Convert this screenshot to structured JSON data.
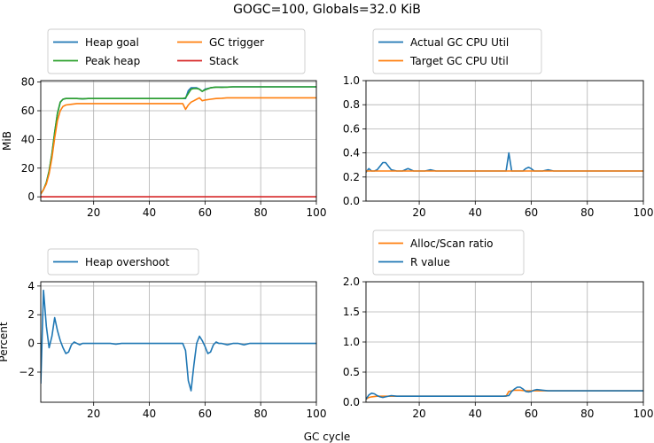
{
  "figure": {
    "title": "GOGC=100, Globals=32.0 KiB",
    "shared_xlabel": "GC cycle"
  },
  "colors": {
    "blue": "#1f77b4",
    "orange": "#ff7f0e",
    "green": "#2ca02c",
    "red": "#d62728",
    "grid": "#b0b0b0"
  },
  "chart_data": [
    {
      "id": "heap",
      "type": "line",
      "xlabel": "",
      "ylabel": "MiB",
      "xlim": [
        1,
        100
      ],
      "ylim": [
        -3,
        81
      ],
      "xticks": [
        20,
        40,
        60,
        80,
        100
      ],
      "yticks": [
        0,
        20,
        40,
        60,
        80
      ],
      "grid": true,
      "legend": {
        "placement": "top-left-outside",
        "columns": 2
      },
      "series": [
        {
          "name": "Heap goal",
          "color": "#1f77b4",
          "x": [
            1,
            2,
            3,
            4,
            5,
            6,
            7,
            8,
            9,
            10,
            12,
            14,
            16,
            18,
            20,
            30,
            40,
            50,
            52,
            53,
            54,
            55,
            56,
            57,
            58,
            59,
            60,
            62,
            64,
            66,
            68,
            70,
            80,
            90,
            100
          ],
          "y": [
            2,
            5,
            10,
            18,
            30,
            45,
            58,
            66,
            68,
            68.5,
            68.5,
            68.5,
            68.3,
            68.5,
            68.5,
            68.5,
            68.5,
            68.5,
            68.5,
            68.5,
            74,
            76,
            76,
            76,
            75,
            73.5,
            75,
            76,
            76.5,
            76.5,
            76.5,
            76.7,
            76.7,
            76.7,
            76.7
          ]
        },
        {
          "name": "Peak heap",
          "color": "#2ca02c",
          "x": [
            1,
            2,
            3,
            4,
            5,
            6,
            7,
            8,
            9,
            10,
            12,
            14,
            16,
            18,
            20,
            30,
            40,
            50,
            52,
            53,
            54,
            55,
            56,
            57,
            58,
            59,
            60,
            62,
            64,
            66,
            68,
            70,
            80,
            90,
            100
          ],
          "y": [
            2,
            5,
            10,
            18,
            30,
            45,
            58,
            66,
            68,
            68.5,
            68.5,
            68.5,
            68.3,
            68.5,
            68.5,
            68.5,
            68.5,
            68.5,
            68.5,
            69,
            72,
            75,
            75.5,
            75.5,
            75,
            73.5,
            74.5,
            76,
            76.5,
            76.3,
            76.5,
            76.7,
            76.7,
            76.7,
            76.7
          ]
        },
        {
          "name": "GC trigger",
          "color": "#ff7f0e",
          "x": [
            1,
            2,
            3,
            4,
            5,
            6,
            7,
            8,
            9,
            10,
            12,
            14,
            16,
            18,
            20,
            30,
            40,
            50,
            52,
            53,
            54,
            55,
            56,
            57,
            58,
            59,
            60,
            62,
            64,
            66,
            68,
            70,
            80,
            90,
            100
          ],
          "y": [
            2,
            5,
            9,
            16,
            27,
            41,
            53,
            60,
            63,
            64,
            64.5,
            65,
            65,
            65,
            65,
            65,
            65,
            65,
            65,
            61,
            64,
            66,
            67,
            68,
            69,
            67,
            67.5,
            68,
            68.5,
            68.7,
            69,
            69,
            69,
            69,
            69
          ]
        },
        {
          "name": "Stack",
          "color": "#d62728",
          "x": [
            1,
            100
          ],
          "y": [
            0,
            0
          ]
        }
      ]
    },
    {
      "id": "cpu",
      "type": "line",
      "xlabel": "",
      "ylabel": "",
      "xlim": [
        1,
        100
      ],
      "ylim": [
        0,
        1
      ],
      "xticks": [
        20,
        40,
        60,
        80,
        100
      ],
      "yticks": [
        0.0,
        0.2,
        0.4,
        0.6,
        0.8,
        1.0
      ],
      "grid": true,
      "legend": {
        "placement": "top-left-outside",
        "columns": 1
      },
      "series": [
        {
          "name": "Actual GC CPU Util",
          "color": "#1f77b4",
          "x": [
            1,
            2,
            3,
            4,
            5,
            6,
            7,
            8,
            9,
            10,
            12,
            14,
            15,
            16,
            17,
            18,
            20,
            22,
            24,
            26,
            28,
            30,
            32,
            34,
            40,
            50,
            51,
            52,
            53,
            54,
            55,
            56,
            57,
            58,
            59,
            60,
            61,
            62,
            64,
            66,
            68,
            70,
            72,
            74,
            76,
            80,
            90,
            100
          ],
          "y": [
            0.24,
            0.27,
            0.25,
            0.25,
            0.26,
            0.29,
            0.32,
            0.32,
            0.29,
            0.26,
            0.25,
            0.25,
            0.26,
            0.27,
            0.26,
            0.25,
            0.25,
            0.25,
            0.26,
            0.25,
            0.25,
            0.25,
            0.25,
            0.25,
            0.25,
            0.25,
            0.25,
            0.4,
            0.25,
            0.25,
            0.25,
            0.25,
            0.25,
            0.27,
            0.28,
            0.27,
            0.25,
            0.25,
            0.25,
            0.26,
            0.25,
            0.25,
            0.25,
            0.25,
            0.25,
            0.25,
            0.25,
            0.25
          ]
        },
        {
          "name": "Target GC CPU Util",
          "color": "#ff7f0e",
          "x": [
            1,
            100
          ],
          "y": [
            0.25,
            0.25
          ]
        }
      ]
    },
    {
      "id": "overshoot",
      "type": "line",
      "xlabel": "",
      "ylabel": "Percent",
      "xlim": [
        1,
        100
      ],
      "ylim": [
        -4.1,
        4.3
      ],
      "xticks": [
        20,
        40,
        60,
        80,
        100
      ],
      "yticks": [
        -2,
        0,
        2,
        4
      ],
      "grid": true,
      "legend": {
        "placement": "top-left-outside",
        "columns": 1
      },
      "series": [
        {
          "name": "Heap overshoot",
          "color": "#1f77b4",
          "x": [
            1,
            2,
            3,
            4,
            5,
            6,
            7,
            8,
            9,
            10,
            11,
            12,
            13,
            14,
            15,
            16,
            18,
            20,
            22,
            24,
            26,
            28,
            30,
            40,
            50,
            52,
            53,
            54,
            55,
            56,
            57,
            58,
            59,
            60,
            61,
            62,
            63,
            64,
            65,
            66,
            68,
            70,
            72,
            74,
            76,
            78,
            80,
            90,
            100
          ],
          "y": [
            -2.8,
            3.7,
            1.2,
            -0.3,
            0.5,
            1.8,
            0.9,
            0.2,
            -0.3,
            -0.7,
            -0.6,
            -0.1,
            0.1,
            0,
            -0.1,
            0,
            0,
            0,
            0,
            0,
            0,
            -0.05,
            0,
            0,
            0,
            0,
            -0.5,
            -2.6,
            -3.3,
            -1.5,
            0,
            0.5,
            0.2,
            -0.2,
            -0.7,
            -0.6,
            -0.1,
            0.1,
            0,
            0,
            -0.1,
            0,
            0,
            -0.1,
            0,
            0,
            0,
            0,
            0
          ]
        }
      ]
    },
    {
      "id": "ratio",
      "type": "line",
      "xlabel": "",
      "ylabel": "",
      "xlim": [
        1,
        100
      ],
      "ylim": [
        0,
        2
      ],
      "xticks": [
        20,
        40,
        60,
        80,
        100
      ],
      "yticks": [
        0.0,
        0.5,
        1.0,
        1.5,
        2.0
      ],
      "grid": true,
      "legend": {
        "placement": "top-left-outside",
        "columns": 1
      },
      "series": [
        {
          "name": "Alloc/Scan ratio",
          "color": "#ff7f0e",
          "x": [
            1,
            2,
            3,
            5,
            8,
            10,
            20,
            30,
            40,
            50,
            51,
            52,
            53,
            54,
            56,
            58,
            60,
            62,
            64,
            70,
            80,
            90,
            100
          ],
          "y": [
            0.05,
            0.08,
            0.09,
            0.1,
            0.1,
            0.1,
            0.1,
            0.1,
            0.1,
            0.1,
            0.1,
            0.18,
            0.19,
            0.2,
            0.2,
            0.19,
            0.19,
            0.19,
            0.19,
            0.19,
            0.19,
            0.19,
            0.19
          ]
        },
        {
          "name": "R value",
          "color": "#1f77b4",
          "x": [
            1,
            2,
            3,
            4,
            5,
            6,
            7,
            8,
            10,
            12,
            14,
            16,
            20,
            30,
            40,
            50,
            52,
            53,
            54,
            55,
            56,
            57,
            58,
            59,
            60,
            61,
            62,
            64,
            66,
            70,
            80,
            90,
            100
          ],
          "y": [
            0.05,
            0.12,
            0.15,
            0.14,
            0.11,
            0.09,
            0.08,
            0.09,
            0.11,
            0.1,
            0.1,
            0.1,
            0.1,
            0.1,
            0.1,
            0.1,
            0.11,
            0.18,
            0.22,
            0.25,
            0.25,
            0.22,
            0.18,
            0.17,
            0.18,
            0.2,
            0.21,
            0.2,
            0.19,
            0.19,
            0.19,
            0.19,
            0.19
          ]
        }
      ]
    }
  ]
}
